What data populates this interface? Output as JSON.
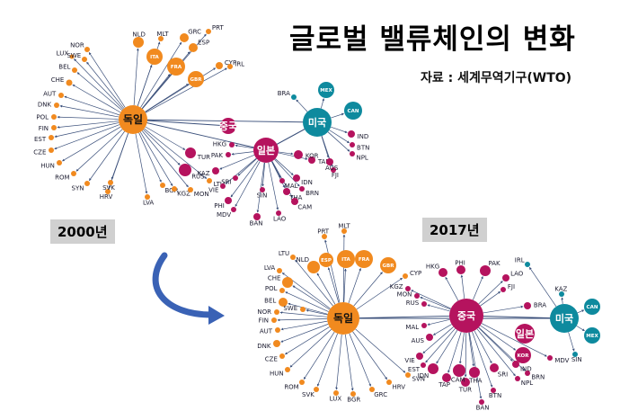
{
  "title": "글로벌 밸류체인의 변화",
  "source": "자료 : 세계무역기구(WTO)",
  "colors": {
    "germany": "#f18a1f",
    "china": "#b5135e",
    "usa": "#0e8a9e",
    "edge": "#3a4f7a",
    "arrow": "#3a62b5"
  },
  "panels": [
    {
      "year": "2000년",
      "hubs": [
        {
          "id": "de",
          "label": "독일",
          "group": "germany"
        },
        {
          "id": "jp",
          "label": "일본",
          "group": "china"
        },
        {
          "id": "us",
          "label": "미국",
          "group": "usa"
        },
        {
          "id": "cn",
          "label": "중국",
          "group": "china"
        }
      ],
      "nodes": [
        {
          "label": "NOR",
          "group": "germany",
          "hub": "de"
        },
        {
          "label": "LUX",
          "group": "germany",
          "hub": "de"
        },
        {
          "label": "SWE",
          "group": "germany",
          "hub": "de"
        },
        {
          "label": "BEL",
          "group": "germany",
          "hub": "de"
        },
        {
          "label": "CHE",
          "group": "germany",
          "hub": "de"
        },
        {
          "label": "AUT",
          "group": "germany",
          "hub": "de"
        },
        {
          "label": "DNK",
          "group": "germany",
          "hub": "de"
        },
        {
          "label": "POL",
          "group": "germany",
          "hub": "de"
        },
        {
          "label": "FIN",
          "group": "germany",
          "hub": "de"
        },
        {
          "label": "EST",
          "group": "germany",
          "hub": "de"
        },
        {
          "label": "CZE",
          "group": "germany",
          "hub": "de"
        },
        {
          "label": "HUN",
          "group": "germany",
          "hub": "de"
        },
        {
          "label": "ROM",
          "group": "germany",
          "hub": "de"
        },
        {
          "label": "SYN",
          "group": "germany",
          "hub": "de"
        },
        {
          "label": "HRV",
          "group": "germany",
          "hub": "de"
        },
        {
          "label": "SVK",
          "group": "germany",
          "hub": "de"
        },
        {
          "label": "LVA",
          "group": "germany",
          "hub": "de"
        },
        {
          "label": "BGR",
          "group": "germany",
          "hub": "de"
        },
        {
          "label": "KGZ",
          "group": "germany",
          "hub": "de"
        },
        {
          "label": "MON",
          "group": "germany",
          "hub": "de"
        },
        {
          "label": "LTU",
          "group": "germany",
          "hub": "de"
        },
        {
          "label": "NLD",
          "group": "germany",
          "hub": "de"
        },
        {
          "label": "MLT",
          "group": "germany",
          "hub": "de"
        },
        {
          "label": "GRC",
          "group": "germany",
          "hub": "de"
        },
        {
          "label": "ITA",
          "group": "germany",
          "hub": "de"
        },
        {
          "label": "FRA",
          "group": "germany",
          "hub": "de"
        },
        {
          "label": "ESP",
          "group": "germany",
          "hub": "de"
        },
        {
          "label": "PRT",
          "group": "germany",
          "hub": "de"
        },
        {
          "label": "GBR",
          "group": "germany",
          "hub": "de"
        },
        {
          "label": "CYP",
          "group": "germany",
          "hub": "de"
        },
        {
          "label": "IRL",
          "group": "germany",
          "hub": "de"
        },
        {
          "label": "TUR",
          "group": "china",
          "hub": "de"
        },
        {
          "label": "RUS",
          "group": "china",
          "hub": "de"
        },
        {
          "label": "KAZ",
          "group": "china",
          "hub": "jp"
        },
        {
          "label": "PAK",
          "group": "china",
          "hub": "jp"
        },
        {
          "label": "HKG",
          "group": "china",
          "hub": "jp"
        },
        {
          "label": "SRI",
          "group": "china",
          "hub": "jp"
        },
        {
          "label": "VIE",
          "group": "china",
          "hub": "jp"
        },
        {
          "label": "PHI",
          "group": "china",
          "hub": "jp"
        },
        {
          "label": "MDV",
          "group": "china",
          "hub": "jp"
        },
        {
          "label": "BAN",
          "group": "china",
          "hub": "jp"
        },
        {
          "label": "LAO",
          "group": "china",
          "hub": "jp"
        },
        {
          "label": "SIN",
          "group": "china",
          "hub": "jp"
        },
        {
          "label": "THA",
          "group": "china",
          "hub": "jp"
        },
        {
          "label": "CAM",
          "group": "china",
          "hub": "jp"
        },
        {
          "label": "MAL",
          "group": "china",
          "hub": "jp"
        },
        {
          "label": "BRN",
          "group": "china",
          "hub": "jp"
        },
        {
          "label": "IDN",
          "group": "china",
          "hub": "jp"
        },
        {
          "label": "TAP",
          "group": "china",
          "hub": "jp"
        },
        {
          "label": "KOR",
          "group": "china",
          "hub": "jp"
        },
        {
          "label": "FJI",
          "group": "china",
          "hub": "us"
        },
        {
          "label": "AUS",
          "group": "china",
          "hub": "us"
        },
        {
          "label": "NPL",
          "group": "china",
          "hub": "us"
        },
        {
          "label": "BTN",
          "group": "china",
          "hub": "us"
        },
        {
          "label": "IND",
          "group": "china",
          "hub": "us"
        },
        {
          "label": "BRA",
          "group": "usa",
          "hub": "us"
        },
        {
          "label": "MEX",
          "group": "usa",
          "hub": "us"
        },
        {
          "label": "CAN",
          "group": "usa",
          "hub": "us"
        }
      ]
    },
    {
      "year": "2017년",
      "hubs": [
        {
          "id": "de",
          "label": "독일",
          "group": "germany"
        },
        {
          "id": "cn",
          "label": "중국",
          "group": "china"
        },
        {
          "id": "us",
          "label": "미국",
          "group": "usa"
        },
        {
          "id": "jp",
          "label": "일본",
          "group": "china"
        }
      ],
      "nodes": [
        {
          "label": "PRT",
          "group": "germany",
          "hub": "de"
        },
        {
          "label": "MLT",
          "group": "germany",
          "hub": "de"
        },
        {
          "label": "LTU",
          "group": "germany",
          "hub": "de"
        },
        {
          "label": "NLD",
          "group": "germany",
          "hub": "de"
        },
        {
          "label": "ESP",
          "group": "germany",
          "hub": "de"
        },
        {
          "label": "ITA",
          "group": "germany",
          "hub": "de"
        },
        {
          "label": "FRA",
          "group": "germany",
          "hub": "de"
        },
        {
          "label": "GBR",
          "group": "germany",
          "hub": "de"
        },
        {
          "label": "LVA",
          "group": "germany",
          "hub": "de"
        },
        {
          "label": "CHE",
          "group": "germany",
          "hub": "de"
        },
        {
          "label": "POL",
          "group": "germany",
          "hub": "de"
        },
        {
          "label": "BEL",
          "group": "germany",
          "hub": "de"
        },
        {
          "label": "NOR",
          "group": "germany",
          "hub": "de"
        },
        {
          "label": "SWE",
          "group": "germany",
          "hub": "de"
        },
        {
          "label": "FIN",
          "group": "germany",
          "hub": "de"
        },
        {
          "label": "AUT",
          "group": "germany",
          "hub": "de"
        },
        {
          "label": "DNK",
          "group": "germany",
          "hub": "de"
        },
        {
          "label": "CZE",
          "group": "germany",
          "hub": "de"
        },
        {
          "label": "HUN",
          "group": "germany",
          "hub": "de"
        },
        {
          "label": "ROM",
          "group": "germany",
          "hub": "de"
        },
        {
          "label": "SVK",
          "group": "germany",
          "hub": "de"
        },
        {
          "label": "LUX",
          "group": "germany",
          "hub": "de"
        },
        {
          "label": "BGR",
          "group": "germany",
          "hub": "de"
        },
        {
          "label": "GRC",
          "group": "germany",
          "hub": "de"
        },
        {
          "label": "HRV",
          "group": "germany",
          "hub": "de"
        },
        {
          "label": "SVN",
          "group": "germany",
          "hub": "de"
        },
        {
          "label": "CYP",
          "group": "germany",
          "hub": "de"
        },
        {
          "label": "MON",
          "group": "china",
          "hub": "cn"
        },
        {
          "label": "KGZ",
          "group": "china",
          "hub": "cn"
        },
        {
          "label": "RUS",
          "group": "china",
          "hub": "cn"
        },
        {
          "label": "HKG",
          "group": "china",
          "hub": "cn"
        },
        {
          "label": "PHI",
          "group": "china",
          "hub": "cn"
        },
        {
          "label": "PAK",
          "group": "china",
          "hub": "cn"
        },
        {
          "label": "LAO",
          "group": "china",
          "hub": "cn"
        },
        {
          "label": "FJI",
          "group": "china",
          "hub": "cn"
        },
        {
          "label": "MAL",
          "group": "china",
          "hub": "cn"
        },
        {
          "label": "AUS",
          "group": "china",
          "hub": "cn"
        },
        {
          "label": "VIE",
          "group": "china",
          "hub": "cn"
        },
        {
          "label": "EST",
          "group": "china",
          "hub": "cn"
        },
        {
          "label": "IDN",
          "group": "china",
          "hub": "cn"
        },
        {
          "label": "TAP",
          "group": "china",
          "hub": "cn"
        },
        {
          "label": "TUR",
          "group": "china",
          "hub": "cn"
        },
        {
          "label": "CAM",
          "group": "china",
          "hub": "cn"
        },
        {
          "label": "THA",
          "group": "china",
          "hub": "cn"
        },
        {
          "label": "BAN",
          "group": "china",
          "hub": "cn"
        },
        {
          "label": "BTN",
          "group": "china",
          "hub": "cn"
        },
        {
          "label": "SRI",
          "group": "china",
          "hub": "cn"
        },
        {
          "label": "IND",
          "group": "china",
          "hub": "cn"
        },
        {
          "label": "NPL",
          "group": "china",
          "hub": "cn"
        },
        {
          "label": "KOR",
          "group": "china",
          "hub": "cn"
        },
        {
          "label": "BRN",
          "group": "china",
          "hub": "cn"
        },
        {
          "label": "MDV",
          "group": "china",
          "hub": "cn"
        },
        {
          "label": "BRA",
          "group": "china",
          "hub": "cn"
        },
        {
          "label": "IRL",
          "group": "usa",
          "hub": "us"
        },
        {
          "label": "KAZ",
          "group": "usa",
          "hub": "us"
        },
        {
          "label": "CAN",
          "group": "usa",
          "hub": "us"
        },
        {
          "label": "MEX",
          "group": "usa",
          "hub": "us"
        },
        {
          "label": "SIN",
          "group": "usa",
          "hub": "us"
        }
      ]
    }
  ]
}
